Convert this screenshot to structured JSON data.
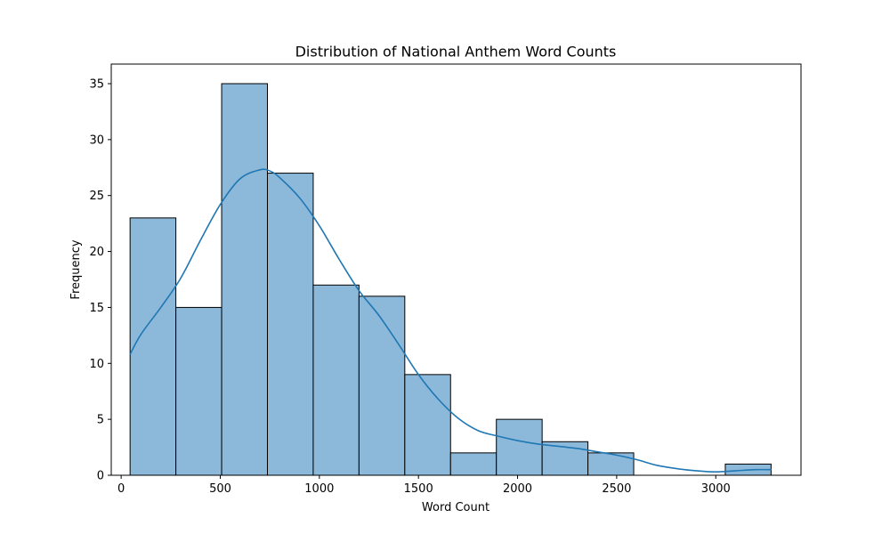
{
  "chart_data": {
    "type": "bar",
    "title": "Distribution of National Anthem Word Counts",
    "xlabel": "Word Count",
    "ylabel": "Frequency",
    "xlim": [
      -50,
      3430
    ],
    "ylim": [
      0,
      36.75
    ],
    "xticks": [
      0,
      500,
      1000,
      1500,
      2000,
      2500,
      3000
    ],
    "yticks": [
      0,
      5,
      10,
      15,
      20,
      25,
      30,
      35
    ],
    "grid": false,
    "legend": "none",
    "bin_start": 45,
    "bin_width": 231,
    "values": [
      23,
      15,
      35,
      27,
      17,
      16,
      9,
      2,
      5,
      3,
      2,
      0,
      0,
      1
    ],
    "kde": {
      "x": [
        45,
        100,
        200,
        300,
        400,
        500,
        600,
        700,
        750,
        800,
        900,
        1000,
        1100,
        1200,
        1300,
        1400,
        1500,
        1600,
        1700,
        1800,
        1900,
        2000,
        2100,
        2200,
        2300,
        2400,
        2500,
        2600,
        2700,
        2800,
        2900,
        3000,
        3100,
        3200,
        3280
      ],
      "y": [
        10.8,
        12.6,
        15.0,
        17.6,
        21.0,
        24.2,
        26.5,
        27.3,
        27.2,
        26.6,
        24.8,
        22.3,
        19.3,
        16.5,
        14.3,
        11.7,
        9.0,
        6.8,
        5.1,
        4.0,
        3.5,
        3.1,
        2.8,
        2.6,
        2.4,
        2.1,
        1.8,
        1.4,
        0.9,
        0.6,
        0.4,
        0.3,
        0.4,
        0.5,
        0.5
      ]
    },
    "colors": {
      "bar_fill": "#8cb9da",
      "bar_edge": "#000000",
      "kde_line": "#1f77b4"
    }
  }
}
